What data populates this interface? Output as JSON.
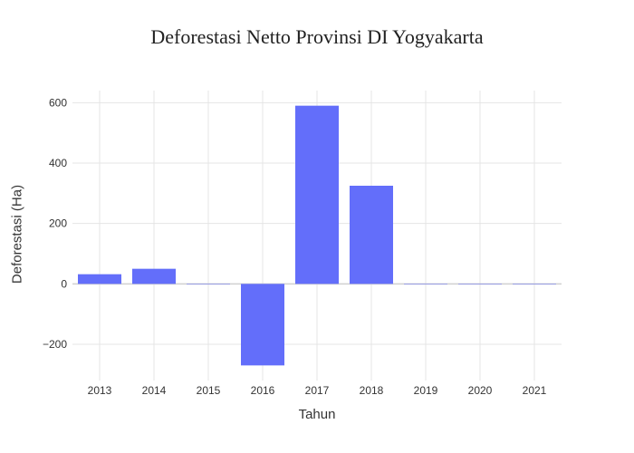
{
  "chart_data": {
    "type": "bar",
    "title": "Deforestasi Netto Provinsi DI Yogyakarta",
    "xlabel": "Tahun",
    "ylabel": "Deforestasi (Ha)",
    "categories": [
      "2013",
      "2014",
      "2015",
      "2016",
      "2017",
      "2018",
      "2019",
      "2020",
      "2021"
    ],
    "values": [
      32,
      50,
      0,
      -270,
      590,
      325,
      1,
      1,
      0
    ],
    "ylim": [
      -320,
      640
    ],
    "yticks": [
      -200,
      0,
      200,
      400,
      600
    ],
    "ytick_labels": [
      "−200",
      "0",
      "200",
      "400",
      "600"
    ],
    "grid": true,
    "legend": "none",
    "bar_color": "#636efa",
    "grid_color": "#e5e5e5",
    "zero_line_color": "#d0d0d0"
  }
}
